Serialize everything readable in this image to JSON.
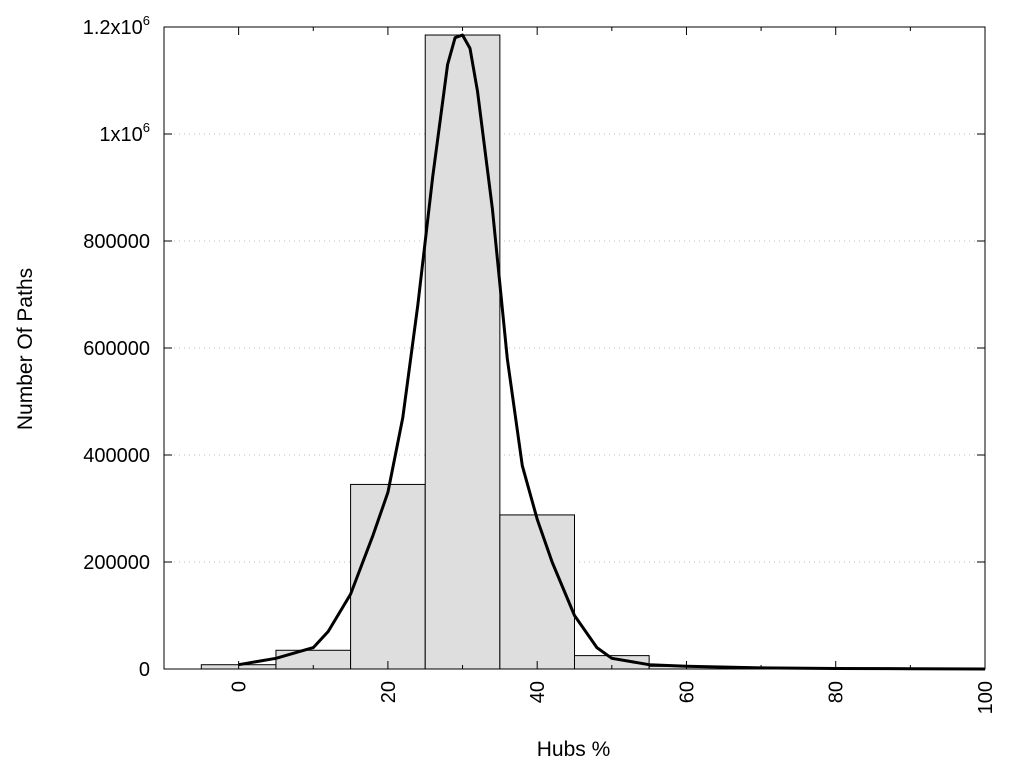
{
  "chart_data": {
    "type": "bar",
    "title": "",
    "xlabel": "Hubs %",
    "ylabel": "Number Of Paths",
    "xlim": [
      -10,
      100
    ],
    "ylim": [
      0,
      1200000
    ],
    "grid": {
      "x": false,
      "y": true
    },
    "legend": "none",
    "x_ticks": [
      {
        "value": 0,
        "label": "0"
      },
      {
        "value": 20,
        "label": "20"
      },
      {
        "value": 40,
        "label": "40"
      },
      {
        "value": 60,
        "label": "60"
      },
      {
        "value": 80,
        "label": "80"
      },
      {
        "value": 100,
        "label": "100"
      }
    ],
    "x_minor_ticks": [
      10,
      30,
      50,
      70,
      90
    ],
    "y_ticks": [
      {
        "value": 0,
        "label": "0"
      },
      {
        "value": 200000,
        "label": "200000"
      },
      {
        "value": 400000,
        "label": "400000"
      },
      {
        "value": 600000,
        "label": "600000"
      },
      {
        "value": 800000,
        "label": "800000"
      },
      {
        "value": 1000000,
        "label": "1x10",
        "sup": "6"
      },
      {
        "value": 1200000,
        "label": "1.2x10",
        "sup": "6"
      }
    ],
    "bin_width": 10,
    "bars": [
      {
        "x": 0,
        "value": 8000
      },
      {
        "x": 10,
        "value": 35000
      },
      {
        "x": 20,
        "value": 345000
      },
      {
        "x": 30,
        "value": 1185000
      },
      {
        "x": 40,
        "value": 288000
      },
      {
        "x": 50,
        "value": 25000
      },
      {
        "x": 60,
        "value": 5000
      },
      {
        "x": 70,
        "value": 2000
      },
      {
        "x": 80,
        "value": 1000
      },
      {
        "x": 90,
        "value": 500
      }
    ],
    "series": [
      {
        "type": "line",
        "x": [
          0,
          5,
          10,
          12,
          15,
          18,
          20,
          22,
          24,
          26,
          28,
          29,
          30,
          31,
          32,
          34,
          36,
          38,
          40,
          42,
          45,
          48,
          50,
          55,
          60,
          70,
          80,
          90,
          100
        ],
        "y": [
          8000,
          20000,
          40000,
          70000,
          140000,
          250000,
          330000,
          470000,
          680000,
          920000,
          1130000,
          1180000,
          1185000,
          1160000,
          1080000,
          860000,
          580000,
          380000,
          280000,
          200000,
          100000,
          40000,
          20000,
          8000,
          5000,
          2000,
          1000,
          500,
          0
        ],
        "color": "#000000"
      }
    ]
  }
}
